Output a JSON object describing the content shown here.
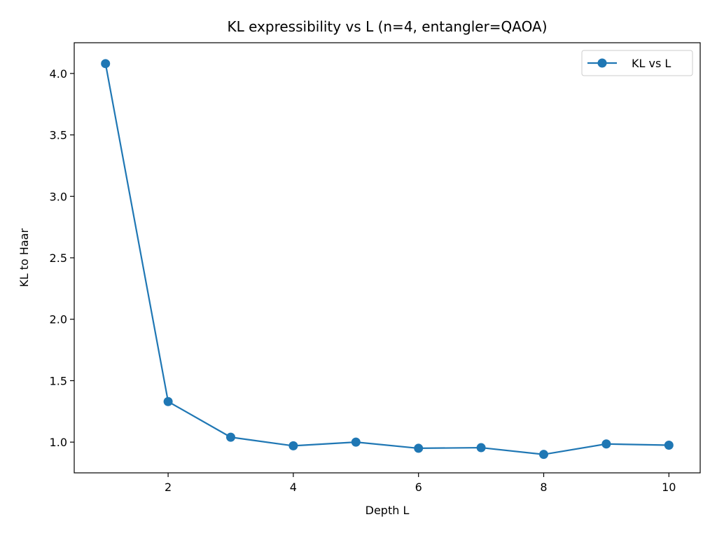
{
  "chart_data": {
    "type": "line",
    "title": "KL expressibility vs L (n=4, entangler=QAOA)",
    "xlabel": "Depth L",
    "ylabel": "KL to Haar",
    "xlim": [
      0.5,
      10.5
    ],
    "ylim": [
      0.75,
      4.25
    ],
    "xticks": [
      2,
      4,
      6,
      8,
      10
    ],
    "yticks": [
      1.0,
      1.5,
      2.0,
      2.5,
      3.0,
      3.5,
      4.0
    ],
    "xtick_labels": [
      "2",
      "4",
      "6",
      "8",
      "10"
    ],
    "ytick_labels": [
      "1.0",
      "1.5",
      "2.0",
      "2.5",
      "3.0",
      "3.5",
      "4.0"
    ],
    "grid": false,
    "legend_position": "top-right",
    "series": [
      {
        "name": "KL vs L",
        "color": "#1f77b4",
        "marker": "circle",
        "x": [
          1,
          2,
          3,
          4,
          5,
          6,
          7,
          8,
          9,
          10
        ],
        "y": [
          4.08,
          1.33,
          1.04,
          0.97,
          1.0,
          0.95,
          0.955,
          0.9,
          0.985,
          0.975
        ]
      }
    ]
  }
}
